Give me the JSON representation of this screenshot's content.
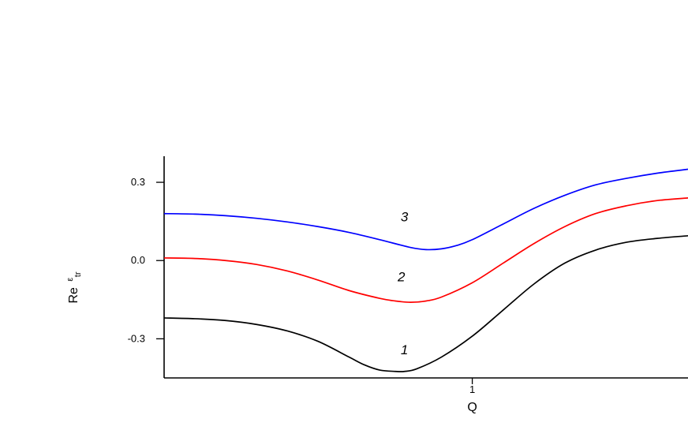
{
  "chart_data": {
    "type": "line",
    "xlabel": "Q",
    "ylabel_main": "Re",
    "ylabel_sup": "ε",
    "ylabel_sub": "tr",
    "xlim": [
      0.0,
      1.7
    ],
    "ylim": [
      -0.45,
      0.4
    ],
    "xticks": [
      {
        "value": 1,
        "label": "1"
      }
    ],
    "yticks": [
      {
        "value": 0.3,
        "label": "0.3"
      },
      {
        "value": 0.0,
        "label": "0.0"
      },
      {
        "value": -0.3,
        "label": "-0.3"
      }
    ],
    "grid": false,
    "series": [
      {
        "label": "1",
        "color": "#000000",
        "label_pos": [
          0.78,
          -0.36
        ],
        "x": [
          0.0,
          0.1,
          0.2,
          0.3,
          0.4,
          0.5,
          0.6,
          0.65,
          0.7,
          0.75,
          0.78,
          0.82,
          0.9,
          1.0,
          1.1,
          1.2,
          1.3,
          1.4,
          1.5,
          1.6,
          1.7
        ],
        "y": [
          -0.22,
          -0.223,
          -0.23,
          -0.245,
          -0.27,
          -0.31,
          -0.37,
          -0.4,
          -0.42,
          -0.425,
          -0.425,
          -0.415,
          -0.37,
          -0.29,
          -0.19,
          -0.09,
          -0.01,
          0.04,
          0.07,
          0.085,
          0.095
        ]
      },
      {
        "label": "2",
        "color": "#ff0000",
        "label_pos": [
          0.77,
          -0.08
        ],
        "x": [
          0.0,
          0.1,
          0.2,
          0.3,
          0.4,
          0.5,
          0.6,
          0.7,
          0.75,
          0.8,
          0.85,
          0.9,
          1.0,
          1.1,
          1.2,
          1.3,
          1.4,
          1.5,
          1.6,
          1.7
        ],
        "y": [
          0.01,
          0.008,
          0.0,
          -0.015,
          -0.04,
          -0.075,
          -0.115,
          -0.145,
          -0.155,
          -0.16,
          -0.155,
          -0.14,
          -0.085,
          -0.01,
          0.065,
          0.13,
          0.18,
          0.21,
          0.23,
          0.24
        ]
      },
      {
        "label": "3",
        "color": "#0000ff",
        "label_pos": [
          0.78,
          0.15
        ],
        "x": [
          0.0,
          0.1,
          0.2,
          0.3,
          0.4,
          0.5,
          0.6,
          0.7,
          0.8,
          0.85,
          0.9,
          0.95,
          1.0,
          1.1,
          1.2,
          1.3,
          1.4,
          1.5,
          1.6,
          1.7
        ],
        "y": [
          0.18,
          0.178,
          0.172,
          0.162,
          0.148,
          0.13,
          0.108,
          0.08,
          0.05,
          0.042,
          0.045,
          0.058,
          0.08,
          0.14,
          0.2,
          0.25,
          0.29,
          0.315,
          0.335,
          0.35
        ]
      }
    ]
  }
}
